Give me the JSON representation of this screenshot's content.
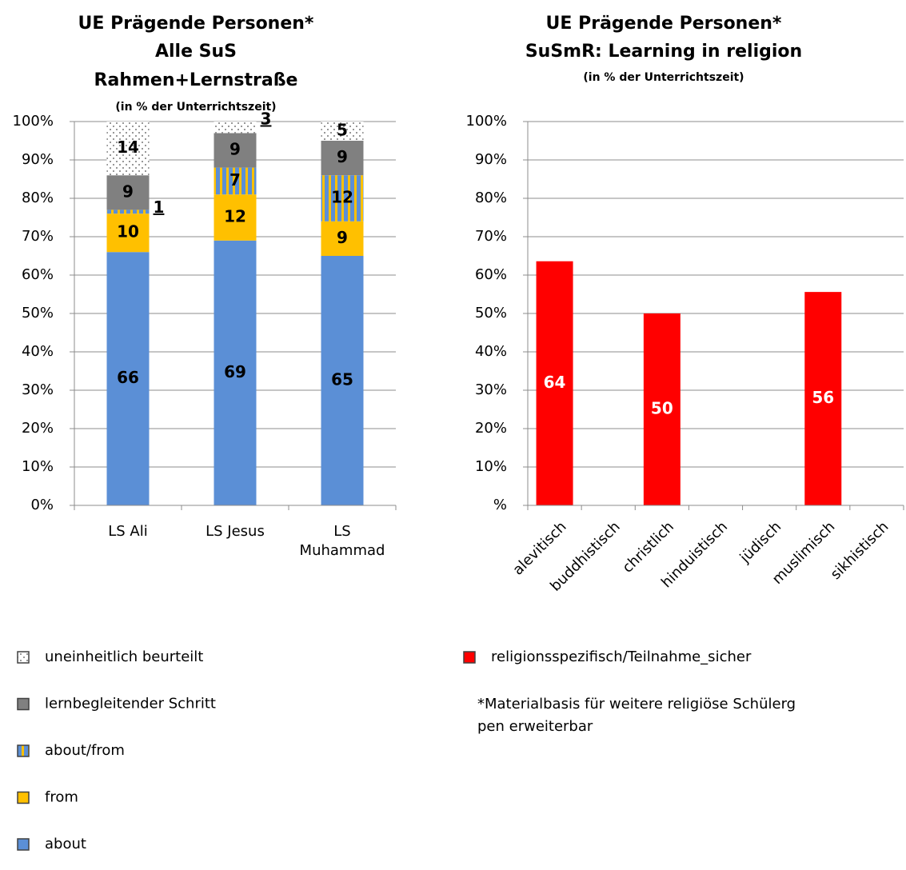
{
  "chart_data": [
    {
      "type": "stacked_bar",
      "title": [
        "UE Prägende Personen*",
        "Alle SuS",
        "Rahmen+Lernstraße"
      ],
      "subtitle": "(in % der Unterrichtszeit)",
      "categories": [
        "LS Ali",
        "LS Jesus",
        "LS Muhammad"
      ],
      "series": [
        {
          "name": "about",
          "color": "#5b8fd6",
          "values": [
            66,
            69,
            65
          ]
        },
        {
          "name": "from",
          "color": "#ffc000",
          "values": [
            10,
            12,
            9
          ]
        },
        {
          "name": "about/from",
          "color": "#5b8fd6",
          "pattern": "stripes",
          "values": [
            1,
            7,
            12
          ]
        },
        {
          "name": "lernbegleitender Schritt",
          "color": "#808080",
          "values": [
            9,
            9,
            9
          ]
        },
        {
          "name": "uneinheitlich beurteilt",
          "color": "#ffffff",
          "pattern": "dots",
          "values": [
            14,
            3,
            5
          ]
        }
      ],
      "ylim": [
        0,
        100
      ],
      "yticks": [
        {
          "value": 0,
          "label": "0%"
        },
        {
          "value": 10,
          "label": "10%"
        },
        {
          "value": 20,
          "label": "20%"
        },
        {
          "value": 30,
          "label": "30%"
        },
        {
          "value": 40,
          "label": "40%"
        },
        {
          "value": 50,
          "label": "50%"
        },
        {
          "value": 60,
          "label": "60%"
        },
        {
          "value": 70,
          "label": "70%"
        },
        {
          "value": 80,
          "label": "80%"
        },
        {
          "value": 90,
          "label": "90%"
        },
        {
          "value": 100,
          "label": "100%"
        }
      ],
      "grid": true
    },
    {
      "type": "bar",
      "title": [
        "UE Prägende Personen*",
        "SuSmR: Learning in religion"
      ],
      "subtitle": "(in % der Unterrichtszeit)",
      "categories": [
        "alevitisch",
        "buddhistisch",
        "christlich",
        "hinduistisch",
        "jüdisch",
        "muslimisch",
        "sikhistisch"
      ],
      "series": [
        {
          "name": "religionsspezifisch/Teilnahme_sicher",
          "color": "#ff0000",
          "values": [
            63.6,
            null,
            50,
            null,
            null,
            55.6,
            null
          ],
          "value_labels": [
            "64",
            null,
            "50",
            null,
            null,
            "56",
            null
          ]
        }
      ],
      "ylim": [
        0,
        100
      ],
      "yticks": [
        {
          "value": 0,
          "label": "%"
        },
        {
          "value": 10,
          "label": "10%"
        },
        {
          "value": 20,
          "label": "20%"
        },
        {
          "value": 30,
          "label": "30%"
        },
        {
          "value": 40,
          "label": "40%"
        },
        {
          "value": 50,
          "label": "50%"
        },
        {
          "value": 60,
          "label": "60%"
        },
        {
          "value": 70,
          "label": "70%"
        },
        {
          "value": 80,
          "label": "80%"
        },
        {
          "value": 90,
          "label": "90%"
        },
        {
          "value": 100,
          "label": "100%"
        }
      ],
      "grid": true,
      "note": [
        "*Materialbasis für weitere religiöse Schülerg",
        "pen erweiterbar"
      ]
    }
  ]
}
